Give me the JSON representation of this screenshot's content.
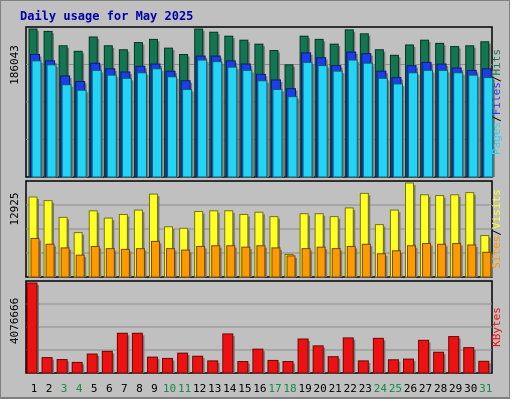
{
  "title": "Daily usage for May 2025",
  "colors": {
    "hits": "#127652",
    "files": "#1c3ee8",
    "pages": "#22d4f5",
    "visits": "#ffff22",
    "sites": "#ff9900",
    "kbytes": "#ee1111",
    "weekday_label": "#000000",
    "weekend_label": "#118844"
  },
  "panels": {
    "top": {
      "ymax_label": "186043",
      "labels": [
        "Pages",
        "Files",
        "Hits"
      ]
    },
    "mid": {
      "ymax_label": "12925",
      "labels": [
        "Sites",
        "Visits"
      ]
    },
    "bot": {
      "ymax_label": "4076666",
      "labels": [
        "KBytes"
      ]
    }
  },
  "chart_data": [
    {
      "type": "bar",
      "title": "Daily usage for May 2025",
      "categories": [
        "1",
        "2",
        "3",
        "4",
        "5",
        "6",
        "7",
        "8",
        "9",
        "10",
        "11",
        "12",
        "13",
        "14",
        "15",
        "16",
        "17",
        "18",
        "19",
        "20",
        "21",
        "22",
        "23",
        "24",
        "25",
        "26",
        "27",
        "28",
        "29",
        "30",
        "31"
      ],
      "weekend_days": [
        3,
        4,
        10,
        11,
        17,
        18,
        24,
        25,
        31
      ],
      "ylim": [
        0,
        186043
      ],
      "series": [
        {
          "name": "Hits",
          "values": [
            186043,
            183000,
            165000,
            158000,
            176000,
            165000,
            160000,
            169000,
            173000,
            162000,
            154000,
            186000,
            182000,
            177000,
            172000,
            167000,
            159000,
            141000,
            177000,
            173000,
            167000,
            185000,
            180000,
            160000,
            153000,
            166000,
            172000,
            168000,
            164000,
            165000,
            170000
          ]
        },
        {
          "name": "Files",
          "values": [
            154000,
            146000,
            127000,
            120000,
            143000,
            136000,
            132000,
            139000,
            142000,
            133000,
            121000,
            152000,
            152000,
            146000,
            142000,
            129000,
            122000,
            111000,
            156000,
            150000,
            140000,
            157000,
            155000,
            133000,
            125000,
            140000,
            144000,
            142000,
            137000,
            134000,
            136000
          ]
        },
        {
          "name": "Pages",
          "values": [
            146000,
            141000,
            116000,
            109000,
            134000,
            128000,
            124000,
            131000,
            136000,
            126000,
            110000,
            147000,
            145000,
            138000,
            134000,
            121000,
            110000,
            101000,
            144000,
            140000,
            133000,
            147000,
            143000,
            124000,
            117000,
            131000,
            134000,
            134000,
            131000,
            128000,
            125000
          ]
        }
      ]
    },
    {
      "type": "bar",
      "categories": [
        "1",
        "2",
        "3",
        "4",
        "5",
        "6",
        "7",
        "8",
        "9",
        "10",
        "11",
        "12",
        "13",
        "14",
        "15",
        "16",
        "17",
        "18",
        "19",
        "20",
        "21",
        "22",
        "23",
        "24",
        "25",
        "26",
        "27",
        "28",
        "29",
        "30",
        "31"
      ],
      "ylim": [
        0,
        12925
      ],
      "series": [
        {
          "name": "Visits",
          "values": [
            11000,
            10500,
            8200,
            6100,
            9100,
            8100,
            8600,
            9200,
            11400,
            6900,
            6700,
            9000,
            9100,
            9100,
            8600,
            8900,
            8300,
            3100,
            8700,
            8700,
            8300,
            9500,
            11500,
            7200,
            9200,
            12925,
            11300,
            11200,
            11300,
            11600,
            5700
          ]
        },
        {
          "name": "Sites",
          "values": [
            5300,
            4500,
            4000,
            3000,
            4200,
            3900,
            3800,
            3900,
            4900,
            3900,
            3700,
            4200,
            4300,
            4300,
            4100,
            4300,
            4000,
            2900,
            3900,
            4100,
            3900,
            4200,
            4500,
            3200,
            3600,
            4300,
            4600,
            4500,
            4600,
            4400,
            3400
          ]
        }
      ]
    },
    {
      "type": "bar",
      "categories": [
        "1",
        "2",
        "3",
        "4",
        "5",
        "6",
        "7",
        "8",
        "9",
        "10",
        "11",
        "12",
        "13",
        "14",
        "15",
        "16",
        "17",
        "18",
        "19",
        "20",
        "21",
        "22",
        "23",
        "24",
        "25",
        "26",
        "27",
        "28",
        "29",
        "30",
        "31"
      ],
      "ylim": [
        0,
        4076666
      ],
      "series": [
        {
          "name": "KBytes",
          "values": [
            4076666,
            700000,
            610000,
            480000,
            860000,
            980000,
            1800000,
            1800000,
            720000,
            660000,
            900000,
            760000,
            550000,
            1770000,
            520000,
            1080000,
            570000,
            520000,
            1540000,
            1230000,
            740000,
            1590000,
            550000,
            1570000,
            600000,
            630000,
            1480000,
            940000,
            1650000,
            1150000,
            530000
          ]
        }
      ]
    }
  ]
}
